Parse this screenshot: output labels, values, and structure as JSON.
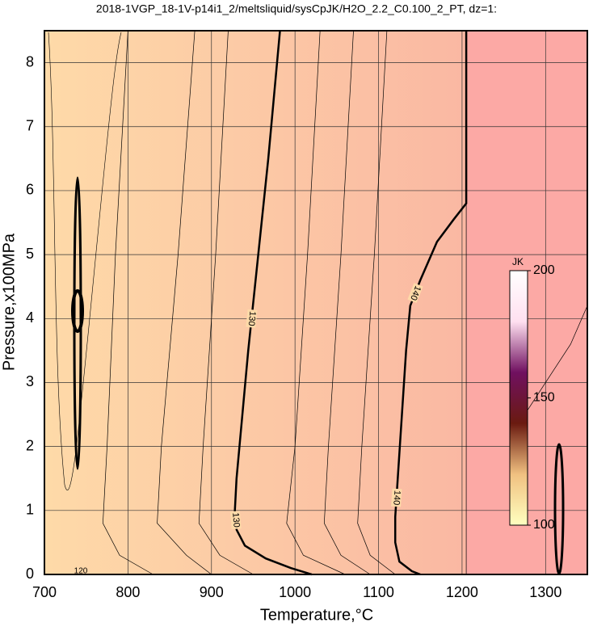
{
  "chart_data": {
    "type": "contour",
    "title": "2018-1VGP_18-1V-p14i1_2/meltsliquid/sysCpJK/H2O_2.2_C0.100_2_PT, dz=1:",
    "x_label": "Temperature,°C",
    "y_label": "Pressure,x100MPa",
    "xlim": [
      700,
      1350
    ],
    "ylim": [
      0,
      8.5
    ],
    "xticks": [
      700,
      800,
      900,
      1000,
      1100,
      1200,
      1300
    ],
    "yticks": [
      0,
      1,
      2,
      3,
      4,
      5,
      6,
      7,
      8
    ],
    "grid": true,
    "background": {
      "low_color": "#fedaa8",
      "high_color": "#f9aea1",
      "step_color": "#fca9a5",
      "step_x": 1205
    },
    "series": [
      {
        "name": "130",
        "color": "#000000",
        "bold": true,
        "x": [
          982,
          975,
          968,
          960,
          952,
          944,
          937,
          930,
          928,
          930,
          940,
          965,
          995,
          1020
        ],
        "values": [
          8.5,
          7.5,
          6.5,
          5.5,
          4.5,
          3.5,
          2.5,
          1.5,
          1.0,
          0.7,
          0.45,
          0.25,
          0.1,
          0
        ]
      },
      {
        "name": "140",
        "color": "#000000",
        "bold": true,
        "x": [
          1205,
          1205,
          1190,
          1170,
          1150,
          1138,
          1133,
          1128,
          1123,
          1120,
          1120,
          1125,
          1140,
          1150
        ],
        "values": [
          8.5,
          5.8,
          5.55,
          5.2,
          4.6,
          4.2,
          3.5,
          2.5,
          1.5,
          0.9,
          0.5,
          0.2,
          0.05,
          0
        ]
      },
      {
        "name": null,
        "color": "#000000",
        "bold": false,
        "x": [
          1205,
          1205
        ],
        "values": [
          0,
          5.8
        ]
      },
      {
        "name": null,
        "color": "#000000",
        "bold": false,
        "x": [
          880,
          860,
          840,
          835,
          870,
          900
        ],
        "values": [
          8.5,
          5,
          2,
          0.8,
          0.3,
          0
        ]
      },
      {
        "name": null,
        "color": "#000000",
        "bold": false,
        "x": [
          920,
          905,
          890,
          885,
          910,
          950
        ],
        "values": [
          8.5,
          5,
          2,
          0.8,
          0.3,
          0
        ]
      },
      {
        "name": null,
        "color": "#000000",
        "bold": false,
        "x": [
          1030,
          1015,
          1000,
          990,
          1010,
          1060
        ],
        "values": [
          8.5,
          5,
          2,
          0.8,
          0.3,
          0
        ]
      },
      {
        "name": null,
        "color": "#000000",
        "bold": false,
        "x": [
          1070,
          1055,
          1040,
          1035,
          1055,
          1090
        ],
        "values": [
          8.5,
          5,
          2,
          0.8,
          0.3,
          0
        ]
      },
      {
        "name": null,
        "color": "#000000",
        "bold": false,
        "x": [
          1110,
          1095,
          1080,
          1075,
          1090,
          1120
        ],
        "values": [
          8.5,
          5,
          2,
          0.8,
          0.3,
          0
        ]
      },
      {
        "name": null,
        "color": "#000000",
        "bold": false,
        "x": [
          800,
          785,
          775,
          770,
          790,
          830
        ],
        "values": [
          8.5,
          5,
          2,
          0.8,
          0.3,
          0
        ]
      },
      {
        "name": null,
        "color": "#000000",
        "bold": false,
        "x": [
          1275,
          1300,
          1330,
          1350
        ],
        "values": [
          2.5,
          3,
          3.6,
          4.2
        ]
      }
    ],
    "contour_low_label": "120",
    "colorbar": {
      "label": "JK",
      "lim": [
        100,
        200
      ],
      "ticks": [
        100,
        150,
        200
      ],
      "colors": [
        "#ffffc0",
        "#f0c080",
        "#6a1a10",
        "#701060",
        "#ffe0f0",
        "#ffffff"
      ]
    }
  }
}
